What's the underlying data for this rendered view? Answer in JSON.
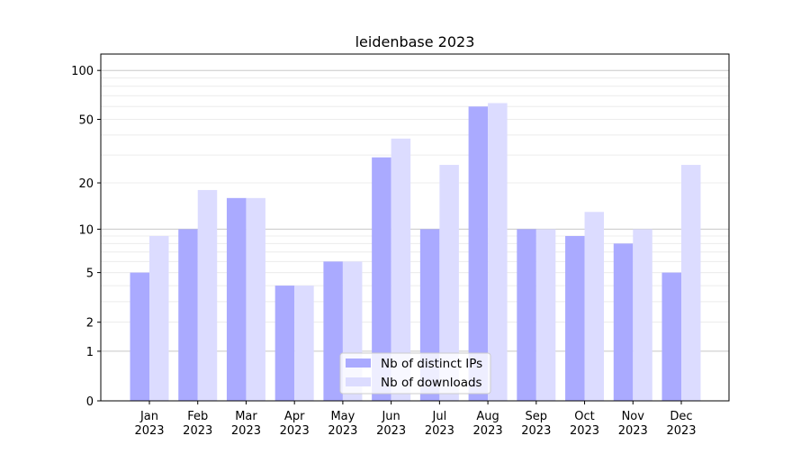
{
  "chart_data": {
    "type": "bar",
    "title": "leidenbase 2023",
    "xlabel": "",
    "ylabel": "",
    "yscale": "log(1+y)",
    "ylim": [
      0,
      126
    ],
    "yticks": [
      0,
      1,
      2,
      5,
      10,
      20,
      50,
      100
    ],
    "grid": true,
    "legend_placement": "lower center",
    "categories": [
      "Jan\n2023",
      "Feb\n2023",
      "Mar\n2023",
      "Apr\n2023",
      "May\n2023",
      "Jun\n2023",
      "Jul\n2023",
      "Aug\n2023",
      "Sep\n2023",
      "Oct\n2023",
      "Nov\n2023",
      "Dec\n2023"
    ],
    "series": [
      {
        "name": "Nb of distinct IPs",
        "color": "#aaaaff",
        "values": [
          5,
          10,
          16,
          4,
          6,
          29,
          10,
          60,
          10,
          9,
          8,
          5
        ]
      },
      {
        "name": "Nb of downloads",
        "color": "#dcdcff",
        "values": [
          9,
          18,
          16,
          4,
          6,
          38,
          26,
          63,
          10,
          13,
          10,
          26
        ]
      }
    ]
  }
}
